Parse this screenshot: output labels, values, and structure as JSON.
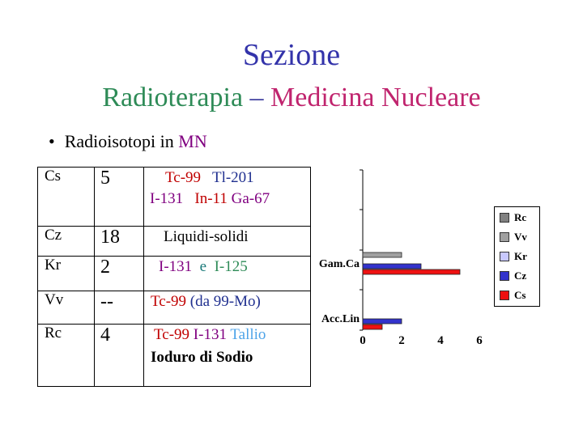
{
  "title": {
    "line1": "Sezione",
    "radio": "Radioterapia",
    "dash": "–",
    "med": "Medicina Nucleare"
  },
  "bullet": {
    "dot": "•",
    "text": "Radioisotopi in",
    "mn": "MN"
  },
  "table": {
    "rows": [
      {
        "code": "Cs",
        "value": "5",
        "l1a": "Tc-99",
        "l1b": "Tl-201",
        "l2a": "I-131",
        "l2b": "In-11",
        "l2c": "Ga-67"
      },
      {
        "code": "Cz",
        "value": "18",
        "text": "Liquidi-solidi"
      },
      {
        "code": "Kr",
        "value": "2",
        "a": "I-131",
        "e": "e",
        "b": "I-125"
      },
      {
        "code": "Vv",
        "value": "--",
        "a": "Tc-99",
        "b": "(da 99-Mo)"
      },
      {
        "code": "Rc",
        "value": "4",
        "a": "Tc-99",
        "b": "I-131",
        "c": "Tallio",
        "d": "Ioduro di Sodio"
      }
    ]
  },
  "chart_data": {
    "type": "bar",
    "orientation": "horizontal",
    "categories": [
      "Gam.Ca",
      "Acc.Lin"
    ],
    "series": [
      {
        "name": "Rc",
        "values": [
          0,
          0
        ],
        "color": "#808080"
      },
      {
        "name": "Vv",
        "values": [
          2,
          0
        ],
        "color": "#a0a0a0"
      },
      {
        "name": "Kr",
        "values": [
          0,
          0
        ],
        "color": "#c8c8ff"
      },
      {
        "name": "Cz",
        "values": [
          3,
          2
        ],
        "color": "#3333cc"
      },
      {
        "name": "Cs",
        "values": [
          5,
          1
        ],
        "color": "#ee1111"
      }
    ],
    "xlim": [
      0,
      6
    ],
    "xticks": [
      "0",
      "2",
      "4",
      "6"
    ],
    "legend": "right",
    "grid": false
  }
}
